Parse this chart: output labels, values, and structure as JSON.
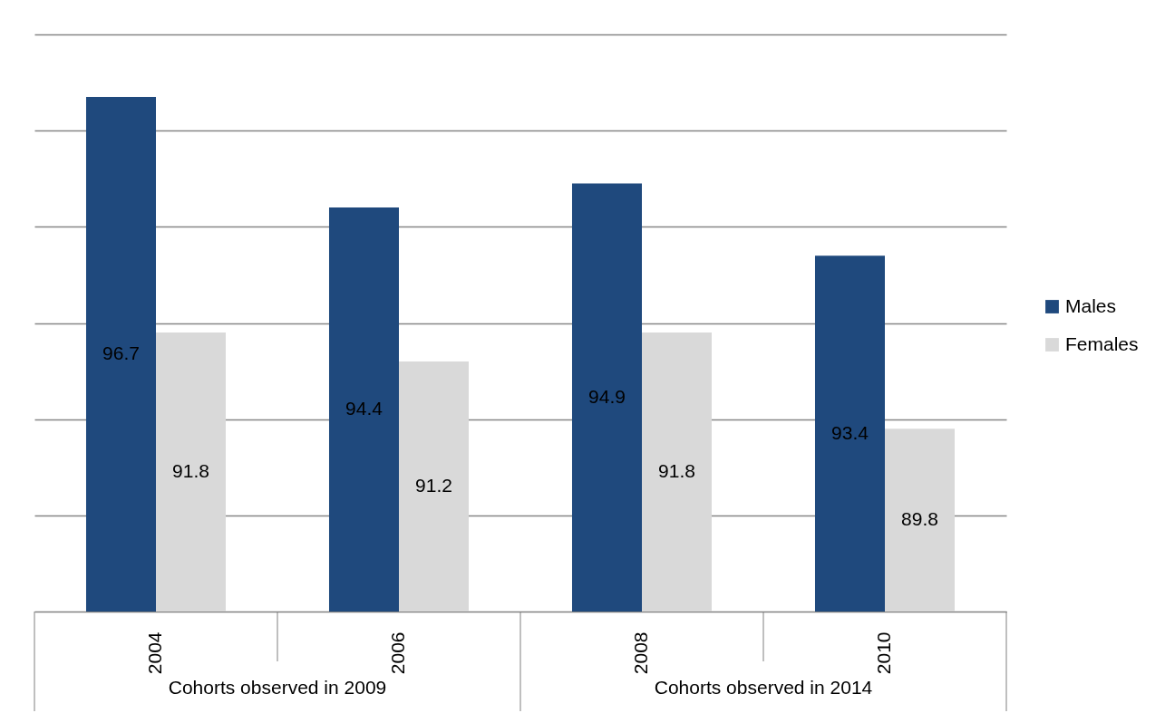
{
  "chart_data": {
    "type": "bar",
    "categories": [
      "2004",
      "2006",
      "2008",
      "2010"
    ],
    "series": [
      {
        "name": "Males",
        "color": "#1f497d",
        "values": [
          96.7,
          94.4,
          94.9,
          93.4
        ]
      },
      {
        "name": "Females",
        "color": "#d9d9d9",
        "values": [
          91.8,
          91.2,
          91.8,
          89.8
        ]
      }
    ],
    "ylim": [
      86,
      98
    ],
    "yticks": [
      {
        "value": 86,
        "label": null
      },
      {
        "value": 88,
        "label": null
      },
      {
        "value": 90,
        "label": null
      },
      {
        "value": 92,
        "label": null
      },
      {
        "value": 94,
        "label": null
      },
      {
        "value": 96,
        "label": null
      },
      {
        "value": 98,
        "label": null
      }
    ],
    "grid": "y",
    "legend": "right",
    "data_labels": true,
    "annotations": [
      "Cohorts observed in 2009",
      "Cohorts observed in 2014"
    ]
  }
}
